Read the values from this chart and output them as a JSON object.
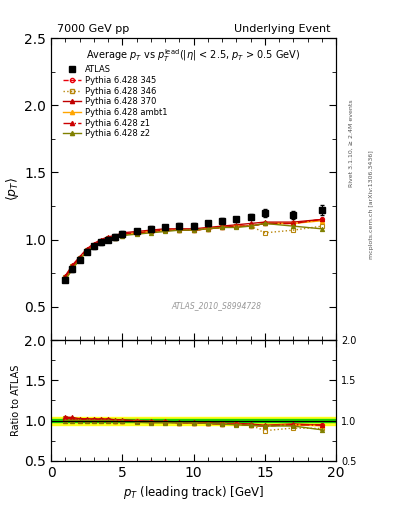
{
  "title_left": "7000 GeV pp",
  "title_right": "Underlying Event",
  "watermark": "ATLAS_2010_S8994728",
  "xlabel": "p_{T} (leading track) [GeV]",
  "right_label_top": "Rivet 3.1.10, ≥ 2.4M events",
  "right_label_bottom": "mcplots.cern.ch [arXiv:1306.3436]",
  "ylim_main": [
    0.25,
    2.5
  ],
  "ylim_ratio": [
    0.5,
    2.0
  ],
  "xlim": [
    0,
    20
  ],
  "yticks_main": [
    0.5,
    1.0,
    1.5,
    2.0,
    2.5
  ],
  "yticks_ratio": [
    0.5,
    1.0,
    1.5,
    2.0
  ],
  "xticks": [
    0,
    5,
    10,
    15,
    20
  ],
  "atlas_x": [
    1.0,
    1.5,
    2.0,
    2.5,
    3.0,
    3.5,
    4.0,
    4.5,
    5.0,
    6.0,
    7.0,
    8.0,
    9.0,
    10.0,
    11.0,
    12.0,
    13.0,
    14.0,
    15.0,
    17.0,
    19.0
  ],
  "atlas_y": [
    0.7,
    0.78,
    0.85,
    0.91,
    0.95,
    0.98,
    1.0,
    1.02,
    1.04,
    1.06,
    1.08,
    1.09,
    1.1,
    1.1,
    1.12,
    1.14,
    1.15,
    1.17,
    1.2,
    1.18,
    1.22
  ],
  "atlas_yerr": [
    0.02,
    0.02,
    0.02,
    0.02,
    0.02,
    0.02,
    0.02,
    0.02,
    0.02,
    0.02,
    0.02,
    0.02,
    0.02,
    0.02,
    0.02,
    0.02,
    0.02,
    0.02,
    0.03,
    0.03,
    0.04
  ],
  "py345_x": [
    1.0,
    1.5,
    2.0,
    2.5,
    3.0,
    3.5,
    4.0,
    4.5,
    5.0,
    6.0,
    7.0,
    8.0,
    9.0,
    10.0,
    11.0,
    12.0,
    13.0,
    14.0,
    15.0,
    17.0,
    19.0
  ],
  "py345_y": [
    0.72,
    0.8,
    0.86,
    0.92,
    0.96,
    0.99,
    1.01,
    1.02,
    1.04,
    1.05,
    1.06,
    1.07,
    1.07,
    1.07,
    1.08,
    1.09,
    1.1,
    1.1,
    1.12,
    1.12,
    1.15
  ],
  "py345_color": "#e8000b",
  "py345_ls": "--",
  "py345_marker": "o",
  "py346_x": [
    1.0,
    1.5,
    2.0,
    2.5,
    3.0,
    3.5,
    4.0,
    4.5,
    5.0,
    6.0,
    7.0,
    8.0,
    9.0,
    10.0,
    11.0,
    12.0,
    13.0,
    14.0,
    15.0,
    17.0,
    19.0
  ],
  "py346_y": [
    0.72,
    0.8,
    0.86,
    0.92,
    0.96,
    0.99,
    1.01,
    1.02,
    1.04,
    1.05,
    1.06,
    1.07,
    1.07,
    1.07,
    1.08,
    1.09,
    1.1,
    1.1,
    1.05,
    1.07,
    1.1
  ],
  "py346_color": "#b8860b",
  "py346_ls": ":",
  "py346_marker": "s",
  "py370_x": [
    1.0,
    1.5,
    2.0,
    2.5,
    3.0,
    3.5,
    4.0,
    4.5,
    5.0,
    6.0,
    7.0,
    8.0,
    9.0,
    10.0,
    11.0,
    12.0,
    13.0,
    14.0,
    15.0,
    17.0,
    19.0
  ],
  "py370_y": [
    0.73,
    0.81,
    0.87,
    0.93,
    0.97,
    1.0,
    1.02,
    1.03,
    1.05,
    1.06,
    1.07,
    1.08,
    1.08,
    1.08,
    1.09,
    1.1,
    1.11,
    1.12,
    1.13,
    1.13,
    1.15
  ],
  "py370_color": "#c00000",
  "py370_ls": "-",
  "py370_marker": "^",
  "pyambt1_x": [
    1.0,
    1.5,
    2.0,
    2.5,
    3.0,
    3.5,
    4.0,
    4.5,
    5.0,
    6.0,
    7.0,
    8.0,
    9.0,
    10.0,
    11.0,
    12.0,
    13.0,
    14.0,
    15.0,
    17.0,
    19.0
  ],
  "pyambt1_y": [
    0.7,
    0.78,
    0.85,
    0.91,
    0.95,
    0.98,
    1.0,
    1.01,
    1.03,
    1.05,
    1.06,
    1.07,
    1.07,
    1.07,
    1.08,
    1.09,
    1.1,
    1.1,
    1.12,
    1.12,
    1.14
  ],
  "pyambt1_color": "#ffa500",
  "pyambt1_ls": "-",
  "pyambt1_marker": "^",
  "pyz1_x": [
    1.0,
    1.5,
    2.0,
    2.5,
    3.0,
    3.5,
    4.0,
    4.5,
    5.0,
    6.0,
    7.0,
    8.0,
    9.0,
    10.0,
    11.0,
    12.0,
    13.0,
    14.0,
    15.0,
    17.0,
    19.0
  ],
  "pyz1_y": [
    0.72,
    0.8,
    0.86,
    0.92,
    0.96,
    0.99,
    1.01,
    1.02,
    1.04,
    1.05,
    1.06,
    1.07,
    1.07,
    1.07,
    1.08,
    1.09,
    1.1,
    1.1,
    1.12,
    1.12,
    1.15
  ],
  "pyz1_color": "#cc0000",
  "pyz1_ls": "-.",
  "pyz1_marker": "^",
  "pyz2_x": [
    1.0,
    1.5,
    2.0,
    2.5,
    3.0,
    3.5,
    4.0,
    4.5,
    5.0,
    6.0,
    7.0,
    8.0,
    9.0,
    10.0,
    11.0,
    12.0,
    13.0,
    14.0,
    15.0,
    17.0,
    19.0
  ],
  "pyz2_y": [
    0.7,
    0.78,
    0.85,
    0.91,
    0.95,
    0.98,
    1.0,
    1.01,
    1.03,
    1.04,
    1.05,
    1.06,
    1.07,
    1.07,
    1.08,
    1.09,
    1.09,
    1.1,
    1.12,
    1.1,
    1.08
  ],
  "pyz2_color": "#808000",
  "pyz2_ls": "-",
  "pyz2_marker": "^",
  "band_green": 0.02,
  "band_yellow": 0.05
}
